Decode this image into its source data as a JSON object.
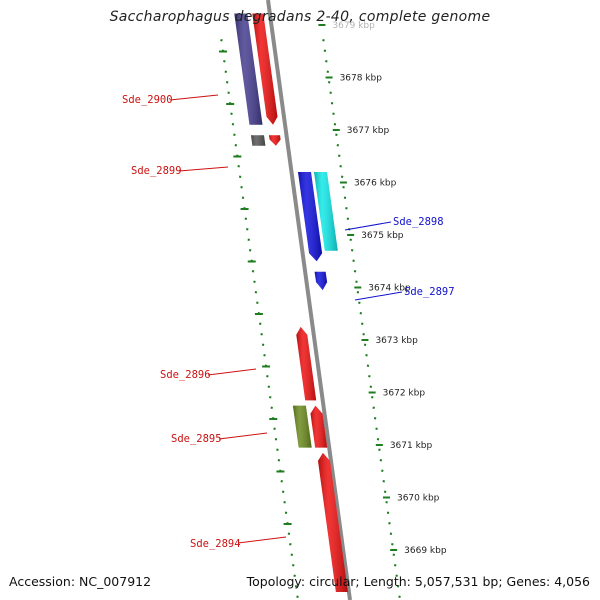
{
  "title": "Saccharophagus degradans 2-40, complete genome",
  "footer": {
    "accession": "Accession: NC_007912",
    "summary": "Topology: circular; Length: 5,057,531 bp; Genes: 4,056"
  },
  "colors": {
    "backbone": "#8a8a8a",
    "ticks": "#1e7d1e",
    "label_forward": "#cc1111",
    "label_reverse": "#1111cc"
  },
  "ticks": [
    {
      "kbp": 3679,
      "label": "3679 kbp"
    },
    {
      "kbp": 3678,
      "label": "3678 kbp"
    },
    {
      "kbp": 3677,
      "label": "3677 kbp"
    },
    {
      "kbp": 3676,
      "label": "3676 kbp"
    },
    {
      "kbp": 3675,
      "label": "3675 kbp"
    },
    {
      "kbp": 3674,
      "label": "3674 kbp"
    },
    {
      "kbp": 3673,
      "label": "3673 kbp"
    },
    {
      "kbp": 3672,
      "label": "3672 kbp"
    },
    {
      "kbp": 3671,
      "label": "3671 kbp"
    },
    {
      "kbp": 3670,
      "label": "3670 kbp"
    },
    {
      "kbp": 3669,
      "label": "3669 kbp"
    }
  ],
  "features": [
    {
      "label": "Sde_2900",
      "strand": "forward",
      "color": "#453d8f",
      "arrow": false,
      "start_kbp": 3679.22,
      "end_kbp": 3677.1
    },
    {
      "label": "",
      "strand": "forward",
      "color": "#ee1111",
      "arrow": true,
      "start_kbp": 3679.22,
      "end_kbp": 3677.1
    },
    {
      "label": "Sde_2899",
      "strand": "forward",
      "color": "#555555",
      "arrow": false,
      "start_kbp": 3676.9,
      "end_kbp": 3676.7
    },
    {
      "label": "",
      "strand": "forward",
      "color": "#ee1111",
      "arrow": true,
      "start_kbp": 3676.9,
      "end_kbp": 3676.7
    },
    {
      "label": "Sde_2898",
      "strand": "reverse",
      "color": "#11e8e8",
      "arrow": false,
      "start_kbp": 3676.2,
      "end_kbp": 3674.7
    },
    {
      "label": "",
      "strand": "reverse",
      "color": "#1111dd",
      "arrow": true,
      "start_kbp": 3676.2,
      "end_kbp": 3674.5
    },
    {
      "label": "Sde_2897",
      "strand": "reverse",
      "color": "#1111dd",
      "arrow": true,
      "start_kbp": 3674.3,
      "end_kbp": 3673.95
    },
    {
      "label": "Sde_2896",
      "strand": "forward",
      "color": "#ee1111",
      "arrow": true,
      "start_kbp": 3671.85,
      "end_kbp": 3673.25
    },
    {
      "label": "Sde_2895",
      "strand": "forward",
      "color": "#6b8a1e",
      "arrow": false,
      "start_kbp": 3671.75,
      "end_kbp": 3670.95
    },
    {
      "label": "",
      "strand": "forward",
      "color": "#ee1111",
      "arrow": true,
      "start_kbp": 3670.95,
      "end_kbp": 3671.75
    },
    {
      "label": "Sde_2894",
      "strand": "forward",
      "color": "#ee1111",
      "arrow": true,
      "start_kbp": 3668.2,
      "end_kbp": 3670.85
    }
  ]
}
